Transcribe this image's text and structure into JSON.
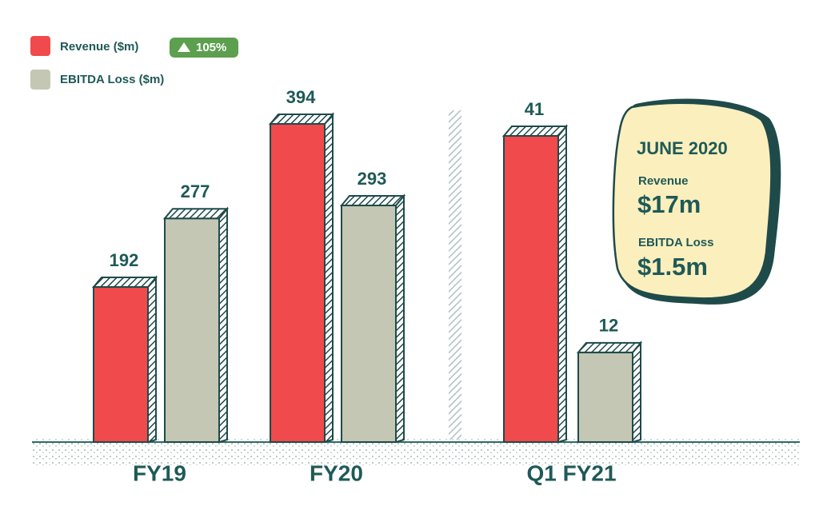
{
  "chart_data": {
    "type": "bar",
    "categories": [
      "FY19",
      "FY20",
      "Q1 FY21"
    ],
    "series": [
      {
        "name": "Revenue ($m)",
        "color": "#f04a4c",
        "values": [
          192,
          394,
          41
        ]
      },
      {
        "name": "EBITDA Loss ($m)",
        "color": "#c4c7b3",
        "values": [
          277,
          293,
          12
        ]
      }
    ],
    "badge": "105%",
    "callout": {
      "title": "JUNE 2020",
      "items": [
        {
          "label": "Revenue",
          "value": "$17m"
        },
        {
          "label": "EBITDA Loss",
          "value": "$1.5m"
        }
      ]
    }
  }
}
